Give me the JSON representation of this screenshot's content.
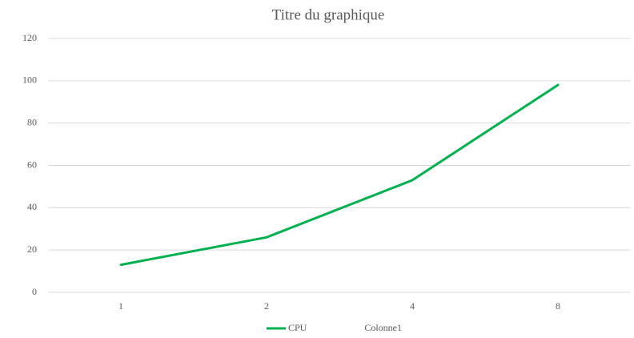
{
  "chart_data": {
    "type": "line",
    "title": "Titre du graphique",
    "categories": [
      "1",
      "2",
      "4",
      "8"
    ],
    "series": [
      {
        "name": "CPU",
        "color": "#00b050",
        "values": [
          13,
          26,
          53,
          98
        ]
      },
      {
        "name": "Colonne1",
        "values": [
          null,
          null,
          null,
          null
        ]
      }
    ],
    "ylim": [
      0,
      120
    ],
    "yticks": [
      0,
      20,
      40,
      60,
      80,
      100,
      120
    ],
    "grid": true,
    "legend": "bottom"
  }
}
